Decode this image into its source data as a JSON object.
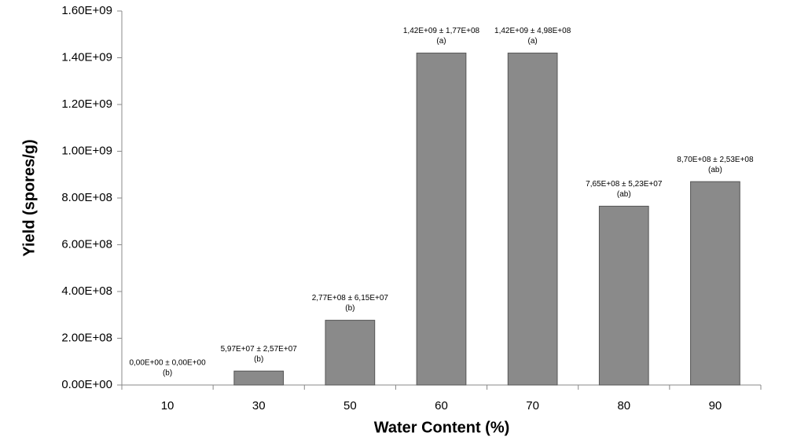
{
  "chart_data": {
    "type": "bar",
    "x_label": "Water Content (%)",
    "y_label": "Yield (spores/g)",
    "categories": [
      "10",
      "30",
      "50",
      "60",
      "70",
      "80",
      "90"
    ],
    "values": [
      0,
      59700000,
      277000000,
      1420000000,
      1420000000,
      765000000,
      870000000
    ],
    "value_labels": [
      "0,00E+00 ± 0,00E+00",
      "5,97E+07 ± 2,57E+07",
      "2,77E+08 ± 6,15E+07",
      "1,42E+09 ± 1,77E+08",
      "1,42E+09 ± 4,98E+08",
      "7,65E+08 ± 5,23E+07",
      "8,70E+08 ± 2,53E+08"
    ],
    "group_letters": [
      "(b)",
      "(b)",
      "(b)",
      "(a)",
      "(a)",
      "(ab)",
      "(ab)"
    ],
    "color": "#8a8a8a",
    "ylim": [
      0,
      1600000000
    ],
    "yticks": [
      {
        "value": 0,
        "label": "0.00E+00"
      },
      {
        "value": 200000000,
        "label": "2.00E+08"
      },
      {
        "value": 400000000,
        "label": "4.00E+08"
      },
      {
        "value": 600000000,
        "label": "6.00E+08"
      },
      {
        "value": 800000000,
        "label": "8.00E+08"
      },
      {
        "value": 1000000000,
        "label": "1.00E+09"
      },
      {
        "value": 1200000000,
        "label": "1.20E+09"
      },
      {
        "value": 1400000000,
        "label": "1.40E+09"
      },
      {
        "value": 1600000000,
        "label": "1.60E+09"
      }
    ],
    "grid": false
  }
}
